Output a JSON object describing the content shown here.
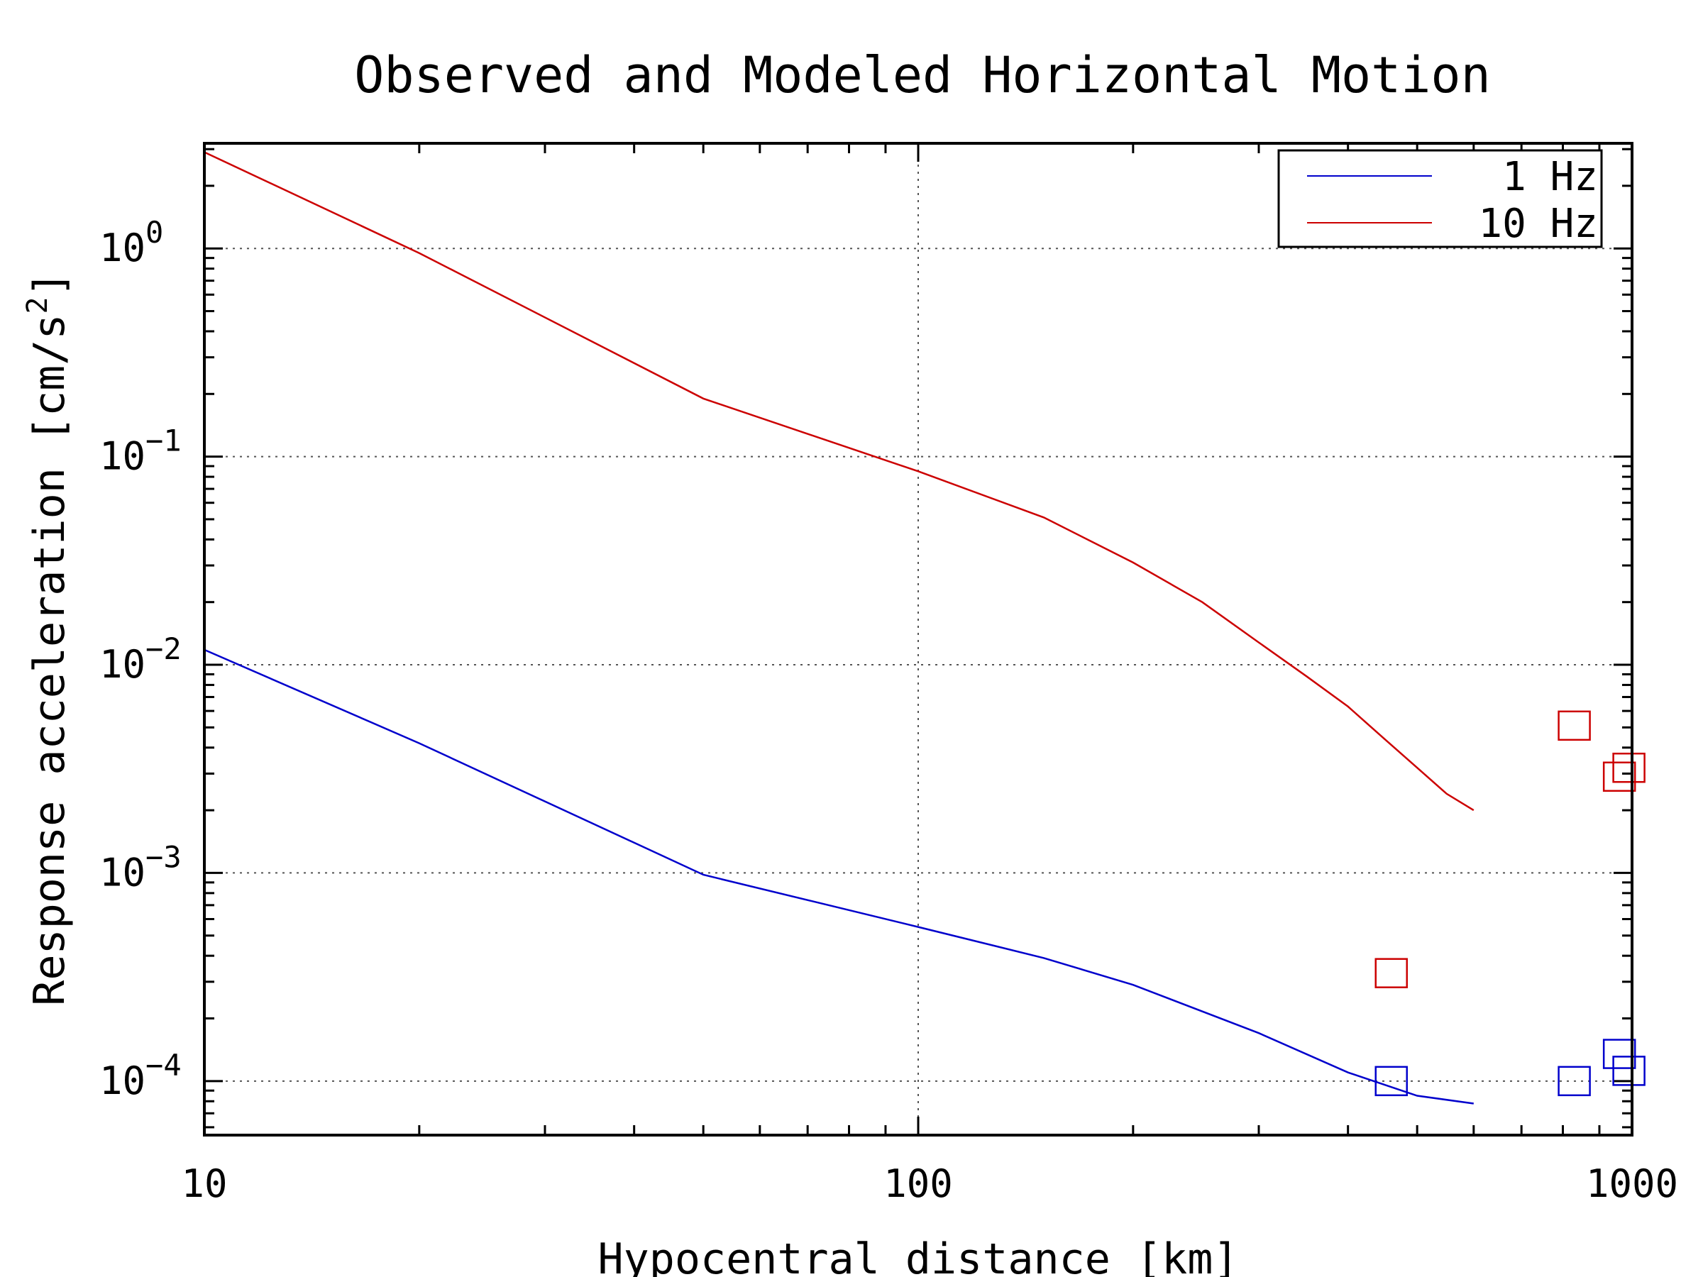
{
  "chart_data": {
    "type": "line",
    "title": "Observed and Modeled Horizontal Motion",
    "xlabel": "Hypocentral distance [km]",
    "ylabel_text": "Response acceleration [cm/s",
    "ylabel_sup": "2",
    "ylabel_close": "]",
    "x_scale": "log",
    "y_scale": "log",
    "xlim": [
      10,
      1000
    ],
    "ylim": [
      5.5e-05,
      3.2
    ],
    "grid": true,
    "legend_position": "top-right",
    "x_ticks": [
      {
        "value": 10,
        "label": "10"
      },
      {
        "value": 100,
        "label": "100"
      },
      {
        "value": 1000,
        "label": "1000"
      }
    ],
    "y_ticks": [
      {
        "value": 1,
        "base": "10",
        "exp": "0"
      },
      {
        "value": 0.1,
        "base": "10",
        "exp": "−1"
      },
      {
        "value": 0.01,
        "base": "10",
        "exp": "−2"
      },
      {
        "value": 0.001,
        "base": "10",
        "exp": "−3"
      },
      {
        "value": 0.0001,
        "base": "10",
        "exp": "−4"
      }
    ],
    "series": [
      {
        "name": "1 Hz",
        "color": "#0000cc",
        "line_x": [
          10,
          20,
          50,
          100,
          150,
          200,
          300,
          400,
          500,
          600
        ],
        "line_y": [
          0.0118,
          0.0042,
          0.00098,
          0.00055,
          0.00039,
          0.00029,
          0.00017,
          0.00011,
          8.5e-05,
          7.8e-05
        ],
        "points_x": [
          460,
          830,
          960,
          990
        ],
        "points_y": [
          0.0001,
          0.0001,
          0.000135,
          0.000112
        ]
      },
      {
        "name": "10 Hz",
        "color": "#cc0000",
        "line_x": [
          10,
          20,
          50,
          100,
          150,
          200,
          250,
          300,
          350,
          400,
          450,
          500,
          550,
          600
        ],
        "line_y": [
          2.9,
          0.95,
          0.19,
          0.085,
          0.051,
          0.031,
          0.02,
          0.0128,
          0.0088,
          0.0063,
          0.0044,
          0.0032,
          0.0024,
          0.002
        ],
        "points_x": [
          460,
          830,
          960,
          990
        ],
        "points_y": [
          0.00033,
          0.0051,
          0.0029,
          0.0032
        ]
      }
    ]
  }
}
